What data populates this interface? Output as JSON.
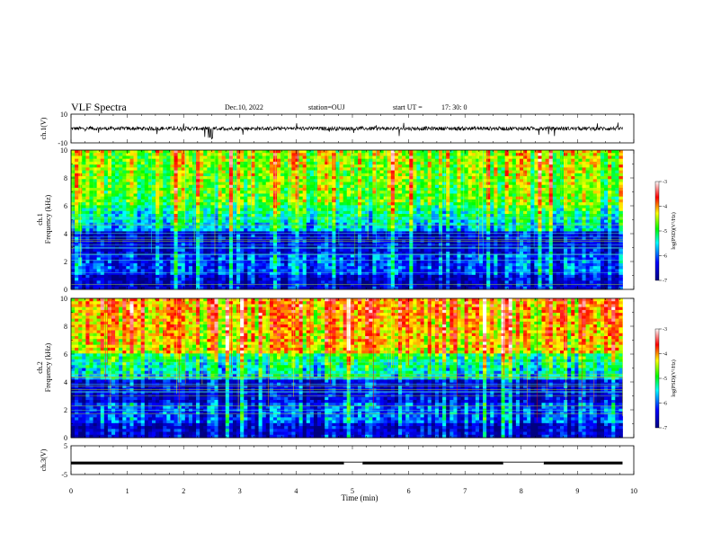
{
  "header": {
    "title": "VLF Spectra",
    "date": "Dec.10, 2022",
    "station": "station=OUJ",
    "start_label": "start  UT  =",
    "start_time": "17: 30: 0"
  },
  "chart_data": [
    {
      "type": "line",
      "name": "ch1-waveform",
      "ylabel": "ch.1(V)",
      "ylim": [
        -10,
        10
      ],
      "y_ticks": [
        "10",
        "-10"
      ],
      "xlim": [
        0,
        10
      ],
      "baseline": 0
    },
    {
      "type": "heatmap",
      "name": "ch1-spectrogram",
      "ylabel_line1": "ch.1",
      "ylabel_line2": "Frequency (kHz)",
      "ylim": [
        0,
        10
      ],
      "y_ticks": [
        "0",
        "2",
        "4",
        "6",
        "8",
        "10"
      ],
      "xlim": [
        0,
        9.8
      ],
      "colorbar": {
        "label": "log(PSD)(V²/Hz)",
        "range": [
          -7,
          -3
        ],
        "ticks": [
          "-3",
          "-4",
          "-5",
          "-6",
          "-7"
        ]
      }
    },
    {
      "type": "heatmap",
      "name": "ch2-spectrogram",
      "ylabel_line1": "ch.2",
      "ylabel_line2": "Frequency (kHz)",
      "ylim": [
        0,
        10
      ],
      "y_ticks": [
        "0",
        "2",
        "4",
        "6",
        "8",
        "10"
      ],
      "xlim": [
        0,
        9.8
      ],
      "colorbar": {
        "label": "log(PSD)(V²/Hz)",
        "range": [
          -7,
          -3
        ],
        "ticks": [
          "-3",
          "-4",
          "-5",
          "-6",
          "-7"
        ]
      }
    },
    {
      "type": "line",
      "name": "ch3-signal",
      "ylabel": "ch.3(V)",
      "ylim": [
        -5,
        5
      ],
      "y_ticks": [
        "5",
        "-5"
      ],
      "xlabel": "Time  (min)",
      "xlim": [
        0,
        10
      ],
      "x_ticks": [
        "0",
        "1",
        "2",
        "3",
        "4",
        "5",
        "6",
        "7",
        "8",
        "9",
        "10"
      ],
      "level": -1,
      "gaps": [
        [
          4.85,
          5.18
        ],
        [
          7.68,
          8.4
        ]
      ]
    }
  ],
  "colors": {
    "palette": [
      "#000080",
      "#0000ff",
      "#00ffff",
      "#00ff00",
      "#ffff00",
      "#ff0000",
      "#ffffff"
    ]
  }
}
